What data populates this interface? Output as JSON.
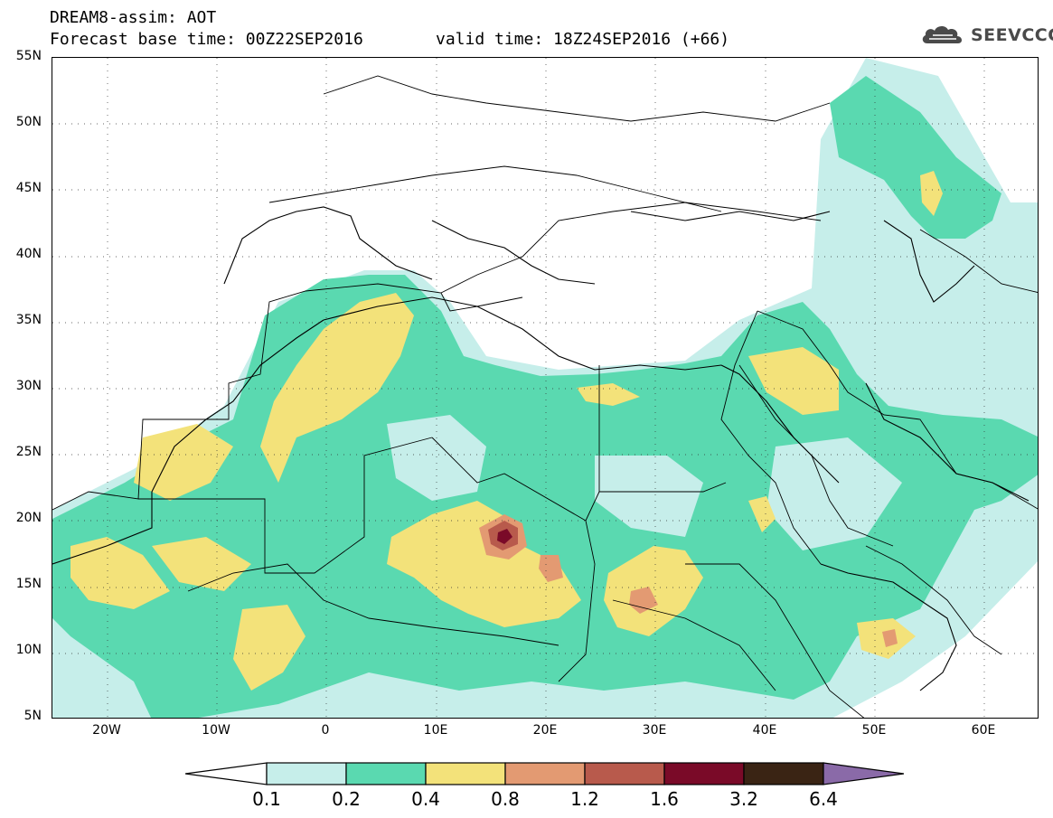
{
  "header": {
    "line1": "DREAM8-assim: AOT",
    "line2": "Forecast base time: 00Z22SEP2016",
    "valid": "valid time: 18Z24SEP2016 (+66)"
  },
  "logo": {
    "text": "SEEVCCC",
    "icon": "cloud-logo-icon"
  },
  "map": {
    "lat_labels": [
      "55N",
      "50N",
      "45N",
      "40N",
      "35N",
      "30N",
      "25N",
      "20N",
      "15N",
      "10N",
      "5N"
    ],
    "lon_labels": [
      "20W",
      "10W",
      "0",
      "10E",
      "20E",
      "30E",
      "40E",
      "50E",
      "60E"
    ],
    "lat_range": [
      5,
      55
    ],
    "lon_range": [
      -25,
      65
    ],
    "grid": "dotted",
    "field_colors": {
      "c01": "#c6eeea",
      "c02": "#5ad9b0",
      "c04": "#f3e27a",
      "c08": "#e39a72",
      "c12": "#b85a4c",
      "c16": "#7a0a28",
      "c32": "#3a2414",
      "c64": "#8a6aa8"
    },
    "line_color": "#000000"
  },
  "legend": {
    "values": [
      "0.1",
      "0.2",
      "0.4",
      "0.8",
      "1.2",
      "1.6",
      "3.2",
      "6.4"
    ],
    "colors": [
      "#ffffff",
      "#c6eeea",
      "#5ad9b0",
      "#f3e27a",
      "#e39a72",
      "#b85a4c",
      "#7a0a28",
      "#3a2414",
      "#8a6aa8"
    ]
  }
}
